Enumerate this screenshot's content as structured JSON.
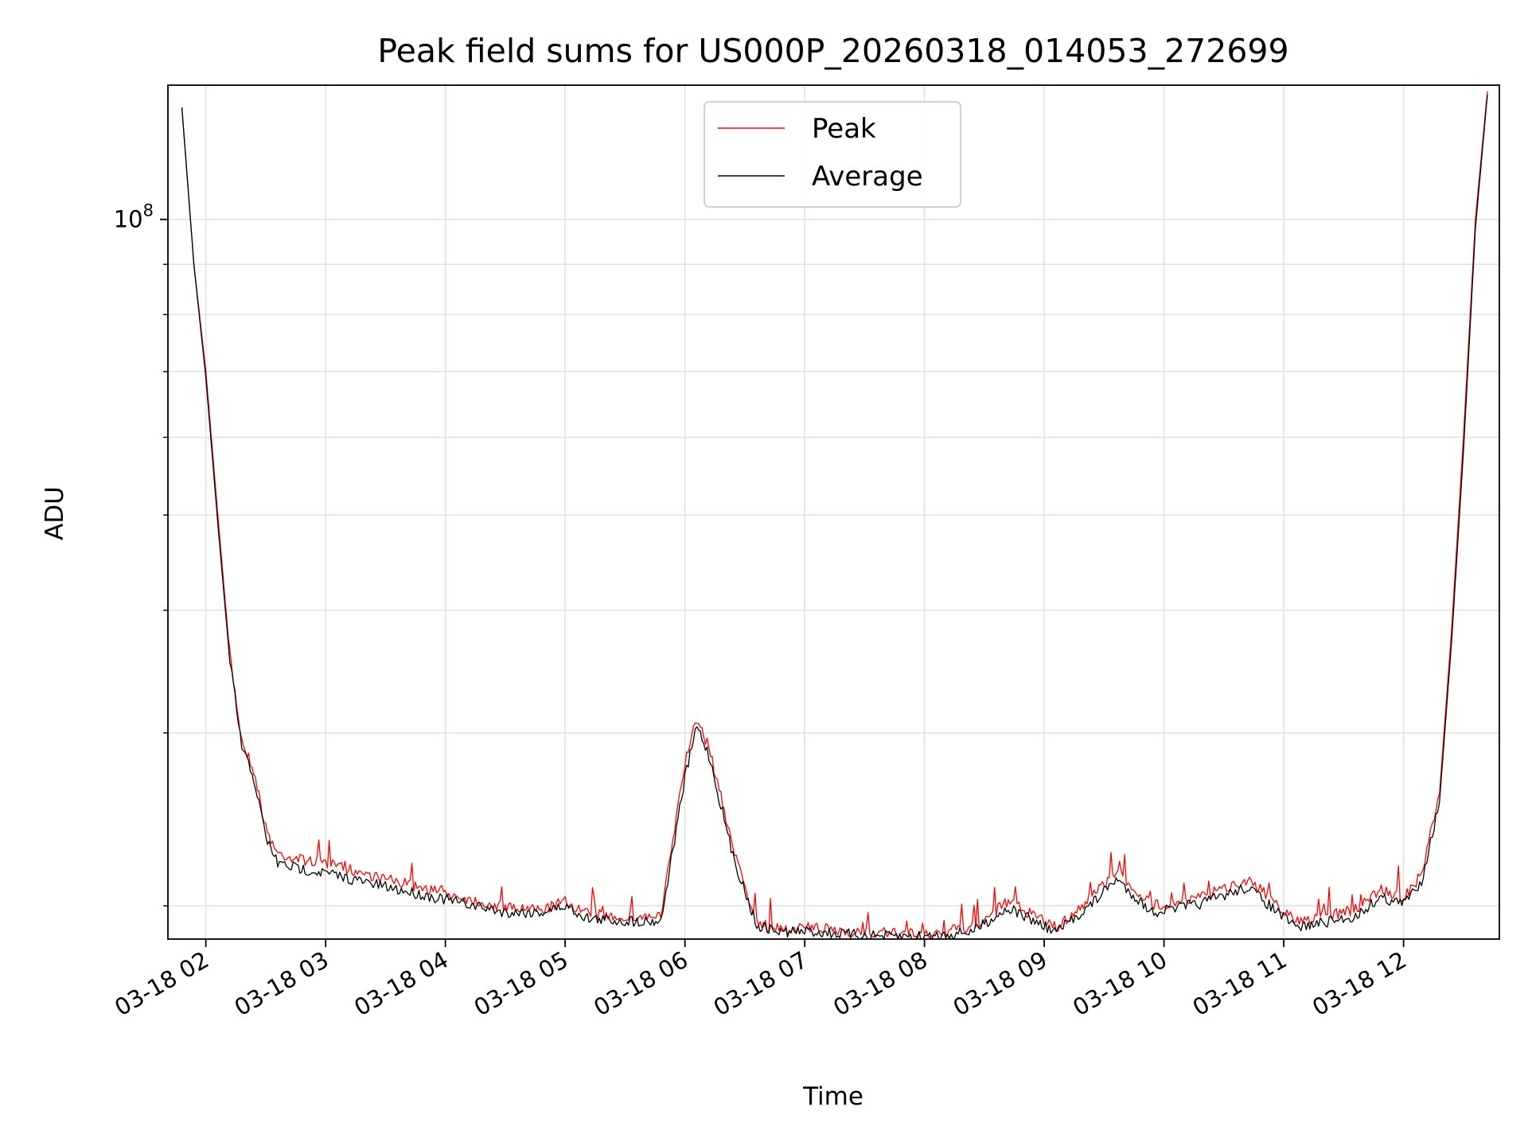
{
  "chart_data": {
    "type": "line",
    "title": "Peak field sums for US000P_20260318_014053_272699",
    "xlabel": "Time",
    "ylabel": "ADU",
    "y_scale": "log",
    "grid": true,
    "legend_position": "upper-center",
    "xlim": [
      "2026-03-18 01:41",
      "2026-03-18 12:48"
    ],
    "ylim": [
      18500000,
      137000000
    ],
    "x_ticks": [
      {
        "value": "2026-03-18 02:00",
        "label": "03-18 02"
      },
      {
        "value": "2026-03-18 03:00",
        "label": "03-18 03"
      },
      {
        "value": "2026-03-18 04:00",
        "label": "03-18 04"
      },
      {
        "value": "2026-03-18 05:00",
        "label": "03-18 05"
      },
      {
        "value": "2026-03-18 06:00",
        "label": "03-18 06"
      },
      {
        "value": "2026-03-18 07:00",
        "label": "03-18 07"
      },
      {
        "value": "2026-03-18 08:00",
        "label": "03-18 08"
      },
      {
        "value": "2026-03-18 09:00",
        "label": "03-18 09"
      },
      {
        "value": "2026-03-18 10:00",
        "label": "03-18 10"
      },
      {
        "value": "2026-03-18 11:00",
        "label": "03-18 11"
      },
      {
        "value": "2026-03-18 12:00",
        "label": "03-18 12"
      }
    ],
    "y_major_tick": {
      "value": 100000000,
      "base": "10",
      "exp": "8"
    },
    "y_minor_ticks": [
      20000000,
      30000000,
      40000000,
      50000000,
      60000000,
      70000000,
      80000000,
      90000000,
      200000000
    ],
    "series": [
      {
        "name": "Peak",
        "color": "#ff0000",
        "x": [
          "2026-03-18 01:48",
          "2026-03-18 01:54",
          "2026-03-18 02:00",
          "2026-03-18 02:06",
          "2026-03-18 02:12",
          "2026-03-18 02:18",
          "2026-03-18 02:24",
          "2026-03-18 02:30",
          "2026-03-18 02:36",
          "2026-03-18 02:48",
          "2026-03-18 03:00",
          "2026-03-18 03:30",
          "2026-03-18 04:00",
          "2026-03-18 04:30",
          "2026-03-18 04:48",
          "2026-03-18 05:00",
          "2026-03-18 05:12",
          "2026-03-18 05:30",
          "2026-03-18 05:48",
          "2026-03-18 06:00",
          "2026-03-18 06:06",
          "2026-03-18 06:12",
          "2026-03-18 06:24",
          "2026-03-18 06:36",
          "2026-03-18 06:48",
          "2026-03-18 07:00",
          "2026-03-18 07:30",
          "2026-03-18 08:00",
          "2026-03-18 08:24",
          "2026-03-18 08:42",
          "2026-03-18 09:06",
          "2026-03-18 09:24",
          "2026-03-18 09:36",
          "2026-03-18 09:54",
          "2026-03-18 10:18",
          "2026-03-18 10:42",
          "2026-03-18 11:06",
          "2026-03-18 11:36",
          "2026-03-18 11:48",
          "2026-03-18 12:00",
          "2026-03-18 12:09",
          "2026-03-18 12:18",
          "2026-03-18 12:24",
          "2026-03-18 12:30",
          "2026-03-18 12:36",
          "2026-03-18 12:42"
        ],
        "values": [
          130000000,
          90000000,
          70000000,
          50000000,
          36000000,
          29500000,
          27500000,
          24000000,
          22600000,
          22300000,
          22100000,
          21300000,
          20600000,
          19900000,
          19800000,
          20200000,
          19600000,
          19500000,
          19500000,
          28000000,
          31000000,
          29000000,
          23000000,
          19200000,
          18900000,
          19000000,
          18800000,
          18700000,
          19000000,
          20200000,
          19000000,
          20400000,
          21700000,
          20000000,
          20400000,
          21300000,
          19300000,
          19800000,
          20800000,
          20400000,
          21500000,
          26000000,
          38000000,
          60000000,
          100000000,
          135000000
        ]
      },
      {
        "name": "Average",
        "color": "#000000",
        "x": [
          "2026-03-18 01:48",
          "2026-03-18 01:54",
          "2026-03-18 02:00",
          "2026-03-18 02:06",
          "2026-03-18 02:12",
          "2026-03-18 02:18",
          "2026-03-18 02:24",
          "2026-03-18 02:30",
          "2026-03-18 02:36",
          "2026-03-18 02:48",
          "2026-03-18 03:00",
          "2026-03-18 03:30",
          "2026-03-18 04:00",
          "2026-03-18 04:30",
          "2026-03-18 04:48",
          "2026-03-18 05:00",
          "2026-03-18 05:12",
          "2026-03-18 05:30",
          "2026-03-18 05:48",
          "2026-03-18 06:00",
          "2026-03-18 06:06",
          "2026-03-18 06:12",
          "2026-03-18 06:24",
          "2026-03-18 06:36",
          "2026-03-18 06:48",
          "2026-03-18 07:00",
          "2026-03-18 07:30",
          "2026-03-18 08:00",
          "2026-03-18 08:24",
          "2026-03-18 08:42",
          "2026-03-18 09:06",
          "2026-03-18 09:24",
          "2026-03-18 09:36",
          "2026-03-18 09:54",
          "2026-03-18 10:18",
          "2026-03-18 10:42",
          "2026-03-18 11:06",
          "2026-03-18 11:36",
          "2026-03-18 11:48",
          "2026-03-18 12:00",
          "2026-03-18 12:09",
          "2026-03-18 12:18",
          "2026-03-18 12:24",
          "2026-03-18 12:30",
          "2026-03-18 12:36",
          "2026-03-18 12:42"
        ],
        "values": [
          130000000,
          90000000,
          69000000,
          49000000,
          35500000,
          29000000,
          27000000,
          23500000,
          22100000,
          21800000,
          21600000,
          20900000,
          20300000,
          19700000,
          19700000,
          20000000,
          19400000,
          19300000,
          19300000,
          27000000,
          30500000,
          28500000,
          22500000,
          19100000,
          18800000,
          18850000,
          18650000,
          18600000,
          18850000,
          19900000,
          18800000,
          20100000,
          21300000,
          19700000,
          20100000,
          20900000,
          19000000,
          19500000,
          20400000,
          20100000,
          21200000,
          25500000,
          37000000,
          58000000,
          98000000,
          134000000
        ]
      }
    ]
  }
}
